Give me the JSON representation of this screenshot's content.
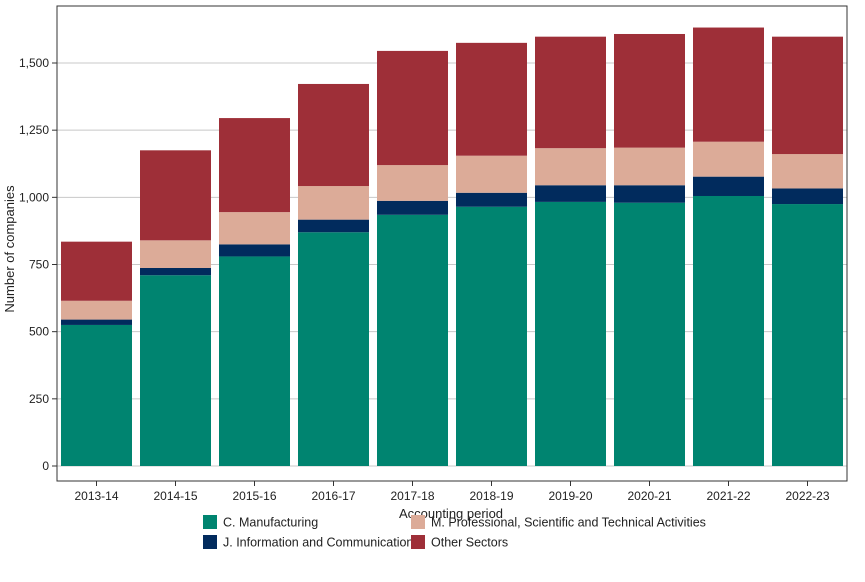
{
  "chart_data": {
    "type": "bar",
    "stacked": true,
    "xlabel": "Accounting period",
    "ylabel": "Number of companies",
    "ylim": [
      0,
      1650
    ],
    "yticks": [
      0,
      250,
      500,
      750,
      1000,
      1250,
      1500
    ],
    "ytick_labels": [
      "0",
      "250",
      "500",
      "750",
      "1,000",
      "1,250",
      "1,500"
    ],
    "grid": "horizontal",
    "legend_position": "bottom",
    "categories": [
      "2013-14",
      "2014-15",
      "2015-16",
      "2016-17",
      "2017-18",
      "2018-19",
      "2019-20",
      "2020-21",
      "2021-22",
      "2022-23"
    ],
    "series": [
      {
        "name": "C. Manufacturing",
        "color": "#008470",
        "values": [
          525,
          710,
          780,
          870,
          935,
          965,
          983,
          980,
          1005,
          975
        ]
      },
      {
        "name": "J. Information and Communication",
        "color": "#012b5d",
        "values": [
          20,
          27,
          45,
          47,
          52,
          52,
          62,
          65,
          72,
          58
        ]
      },
      {
        "name": "M. Professional, Scientific and Technical Activities",
        "color": "#dcab98",
        "values": [
          70,
          103,
          120,
          125,
          133,
          138,
          138,
          140,
          130,
          128
        ]
      },
      {
        "name": "Other Sectors",
        "color": "#9e2f38",
        "values": [
          220,
          335,
          350,
          380,
          425,
          420,
          415,
          423,
          425,
          437
        ]
      }
    ],
    "legend_order": [
      0,
      2,
      1,
      3
    ]
  }
}
